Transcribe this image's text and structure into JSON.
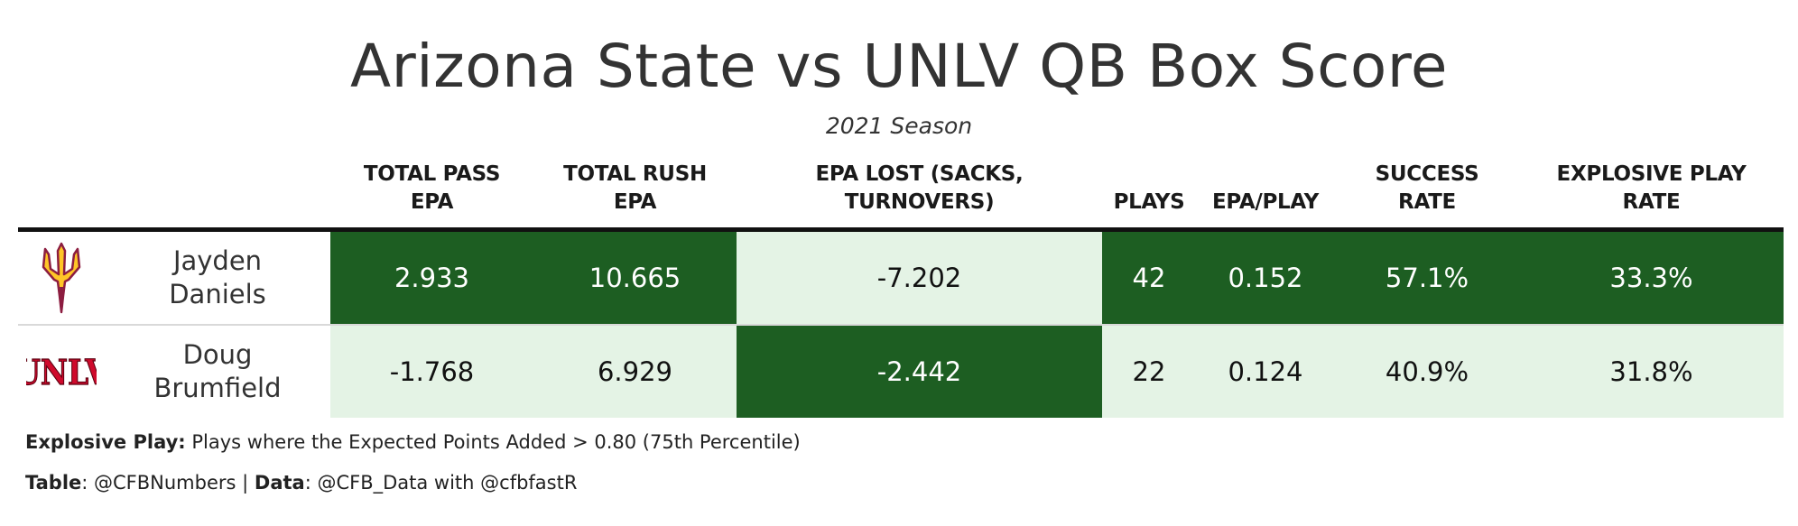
{
  "title": "Arizona State vs UNLV QB Box Score",
  "subtitle": "2021 Season",
  "colors": {
    "dark_fill": "#1d5e22",
    "light_fill": "#e4f3e5",
    "asu_logo_gold": "#ffc627",
    "asu_logo_maroon": "#8c1d40",
    "unlv_logo_red": "#cf0a2c"
  },
  "chart_data": {
    "type": "table",
    "title": "Arizona State vs UNLV QB Box Score",
    "subtitle": "2021 Season",
    "columns": [
      {
        "key": "logo",
        "label": ""
      },
      {
        "key": "player",
        "label": ""
      },
      {
        "key": "total_pass_epa",
        "label_lines": [
          "TOTAL PASS",
          "EPA"
        ]
      },
      {
        "key": "total_rush_epa",
        "label_lines": [
          "TOTAL RUSH",
          "EPA"
        ]
      },
      {
        "key": "epa_lost",
        "label_lines": [
          "EPA LOST (SACKS,",
          "TURNOVERS)"
        ]
      },
      {
        "key": "plays",
        "label_lines": [
          "PLAYS"
        ]
      },
      {
        "key": "epa_per_play",
        "label_lines": [
          "EPA/PLAY"
        ]
      },
      {
        "key": "success_rate",
        "label_lines": [
          "SUCCESS",
          "RATE"
        ]
      },
      {
        "key": "explosive_play_rate",
        "label_lines": [
          "EXPLOSIVE PLAY",
          "RATE"
        ]
      }
    ],
    "rows": [
      {
        "logo": "asu-pitchfork-logo",
        "player_lines": [
          "Jayden",
          "Daniels"
        ],
        "total_pass_epa": "2.933",
        "total_rush_epa": "10.665",
        "epa_lost": "-7.202",
        "plays": "42",
        "epa_per_play": "0.152",
        "success_rate": "57.1%",
        "explosive_play_rate": "33.3%",
        "shading": {
          "total_pass_epa": "dark",
          "total_rush_epa": "dark",
          "epa_lost": "light",
          "plays": "dark",
          "epa_per_play": "dark",
          "success_rate": "dark",
          "explosive_play_rate": "dark"
        }
      },
      {
        "logo": "unlv-wordmark-logo",
        "player_lines": [
          "Doug",
          "Brumfield"
        ],
        "total_pass_epa": "-1.768",
        "total_rush_epa": "6.929",
        "epa_lost": "-2.442",
        "plays": "22",
        "epa_per_play": "0.124",
        "success_rate": "40.9%",
        "explosive_play_rate": "31.8%",
        "shading": {
          "total_pass_epa": "light",
          "total_rush_epa": "light",
          "epa_lost": "dark",
          "plays": "light",
          "epa_per_play": "light",
          "success_rate": "light",
          "explosive_play_rate": "light"
        }
      }
    ]
  },
  "footnotes": {
    "explosive_label": "Explosive Play:",
    "explosive_text": " Plays where the Expected Points Added > 0.80 (75th Percentile)",
    "table_label": "Table",
    "table_text": ": @CFBNumbers | ",
    "data_label": "Data",
    "data_text": ": @CFB_Data with @cfbfastR"
  }
}
